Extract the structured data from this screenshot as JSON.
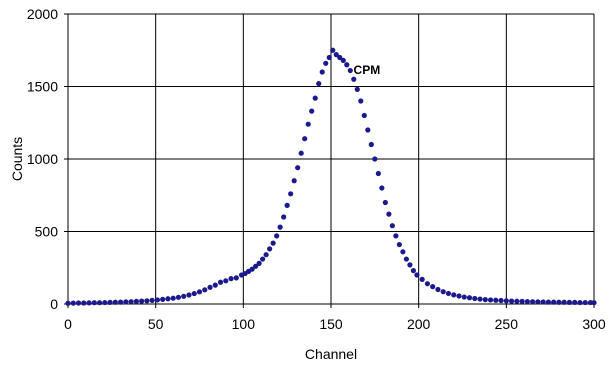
{
  "colors": {
    "series": "#1a1a8c",
    "grid": "#000000",
    "background": "#ffffff"
  },
  "chart_data": {
    "type": "scatter",
    "title": "",
    "xlabel": "Channel",
    "ylabel": "Counts",
    "xlim": [
      0,
      300
    ],
    "ylim": [
      0,
      2000
    ],
    "x_ticks": [
      "0",
      "50",
      "100",
      "150",
      "200",
      "250",
      "300"
    ],
    "y_ticks": [
      "0",
      "500",
      "1000",
      "1500",
      "2000"
    ],
    "grid": true,
    "annotations": [
      {
        "text": "CPM",
        "x": 160,
        "y": 1640
      }
    ],
    "series": [
      {
        "marker": "circle",
        "x": [
          0,
          3,
          6,
          9,
          12,
          15,
          18,
          21,
          24,
          27,
          30,
          33,
          36,
          39,
          42,
          45,
          48,
          51,
          54,
          57,
          60,
          63,
          66,
          69,
          72,
          75,
          78,
          81,
          84,
          87,
          90,
          93,
          96,
          99,
          101,
          103,
          105,
          107,
          109,
          111,
          113,
          115,
          117,
          119,
          121,
          123,
          125,
          127,
          129,
          131,
          133,
          135,
          137,
          139,
          141,
          143,
          145,
          147,
          149,
          151,
          153,
          155,
          157,
          159,
          161,
          163,
          165,
          167,
          169,
          171,
          173,
          175,
          177,
          179,
          181,
          183,
          185,
          187,
          189,
          191,
          193,
          195,
          197,
          199,
          202,
          205,
          208,
          211,
          214,
          217,
          220,
          223,
          226,
          229,
          232,
          235,
          238,
          241,
          244,
          247,
          250,
          253,
          256,
          259,
          262,
          265,
          268,
          271,
          274,
          277,
          280,
          283,
          286,
          289,
          292,
          295,
          298,
          300
        ],
        "y": [
          5,
          6,
          7,
          7,
          8,
          9,
          9,
          10,
          11,
          12,
          13,
          15,
          16,
          18,
          20,
          22,
          25,
          28,
          32,
          36,
          40,
          46,
          53,
          62,
          72,
          84,
          98,
          115,
          130,
          150,
          160,
          175,
          180,
          200,
          210,
          225,
          240,
          260,
          280,
          310,
          340,
          380,
          420,
          470,
          530,
          600,
          680,
          760,
          850,
          940,
          1040,
          1140,
          1240,
          1330,
          1420,
          1520,
          1600,
          1660,
          1700,
          1750,
          1720,
          1700,
          1680,
          1650,
          1610,
          1550,
          1480,
          1400,
          1300,
          1200,
          1100,
          1000,
          900,
          800,
          700,
          620,
          540,
          470,
          410,
          360,
          310,
          270,
          230,
          200,
          170,
          140,
          120,
          100,
          85,
          73,
          63,
          55,
          48,
          43,
          38,
          34,
          30,
          28,
          26,
          24,
          22,
          20,
          19,
          18,
          17,
          16,
          15,
          14,
          13,
          13,
          12,
          12,
          11,
          11,
          10,
          10,
          10,
          9
        ]
      }
    ]
  }
}
